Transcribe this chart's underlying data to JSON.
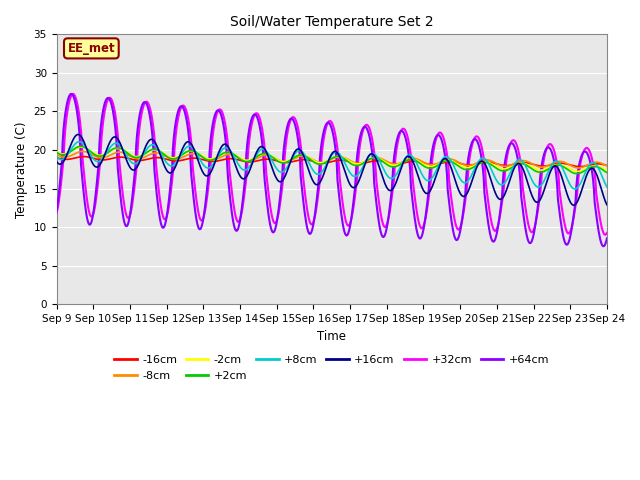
{
  "title": "Soil/Water Temperature Set 2",
  "xlabel": "Time",
  "ylabel": "Temperature (C)",
  "xlim": [
    0,
    15
  ],
  "ylim": [
    0,
    35
  ],
  "yticks": [
    0,
    5,
    10,
    15,
    20,
    25,
    30,
    35
  ],
  "xtick_labels": [
    "Sep 9",
    "Sep 10",
    "Sep 11",
    "Sep 12",
    "Sep 13",
    "Sep 14",
    "Sep 15",
    "Sep 16",
    "Sep 17",
    "Sep 18",
    "Sep 19",
    "Sep 20",
    "Sep 21",
    "Sep 22",
    "Sep 23",
    "Sep 24"
  ],
  "annotation_text": "EE_met",
  "annotation_color": "#8B0000",
  "annotation_bg": "#FFFF99",
  "fig_bg": "#FFFFFF",
  "plot_bg": "#E8E8E8",
  "grid_color": "#FFFFFF",
  "series_colors": {
    "-16cm": "#FF0000",
    "-8cm": "#FF8C00",
    "-2cm": "#FFFF00",
    "+2cm": "#00CC00",
    "+8cm": "#00CCCC",
    "+16cm": "#00008B",
    "+32cm": "#FF00FF",
    "+64cm": "#8B00FF"
  }
}
